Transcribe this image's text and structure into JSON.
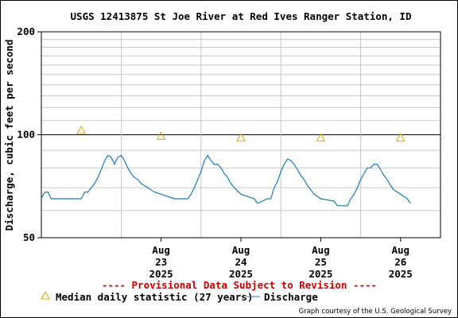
{
  "chart_data": {
    "type": "line",
    "title": "USGS 12413875 St Joe River at Red Ives Ranger Station, ID",
    "ylabel": "Discharge, cubic feet per second",
    "xlabel": "",
    "y_scale": "log",
    "ylim": [
      50,
      200
    ],
    "y_ticks": [
      50,
      100,
      200
    ],
    "y_tick_labels": [
      "50",
      "100",
      "200"
    ],
    "x_start": "2025-08-22",
    "x_end": "2025-08-27",
    "x_ticks": [
      {
        "date": "2025-08-23T00:00",
        "label": [
          "Aug",
          "23",
          "2025"
        ]
      },
      {
        "date": "2025-08-24T00:00",
        "label": [
          "Aug",
          "24",
          "2025"
        ]
      },
      {
        "date": "2025-08-25T00:00",
        "label": [
          "Aug",
          "25",
          "2025"
        ]
      },
      {
        "date": "2025-08-26T00:00",
        "label": [
          "Aug",
          "26",
          "2025"
        ]
      },
      {
        "date": "2025-08-27T00:00",
        "label": [
          "Aug",
          "27",
          "2025"
        ]
      }
    ],
    "grid": true,
    "series": [
      {
        "name": "Discharge",
        "color": "#1a7ab8",
        "x": [
          "2025-08-22T00:00",
          "2025-08-22T01:00",
          "2025-08-22T02:00",
          "2025-08-22T03:00",
          "2025-08-22T06:00",
          "2025-08-22T09:00",
          "2025-08-22T12:00",
          "2025-08-22T13:00",
          "2025-08-22T14:00",
          "2025-08-22T15:00",
          "2025-08-22T16:00",
          "2025-08-22T17:00",
          "2025-08-22T18:00",
          "2025-08-22T19:00",
          "2025-08-22T20:00",
          "2025-08-22T21:00",
          "2025-08-22T22:00",
          "2025-08-22T23:00",
          "2025-08-23T00:00",
          "2025-08-23T01:00",
          "2025-08-23T02:00",
          "2025-08-23T03:00",
          "2025-08-23T04:00",
          "2025-08-23T05:00",
          "2025-08-23T06:00",
          "2025-08-23T08:00",
          "2025-08-23T10:00",
          "2025-08-23T12:00",
          "2025-08-23T16:00",
          "2025-08-23T20:00",
          "2025-08-23T21:00",
          "2025-08-23T22:00",
          "2025-08-23T23:00",
          "2025-08-24T00:00",
          "2025-08-24T01:00",
          "2025-08-24T02:00",
          "2025-08-24T03:00",
          "2025-08-24T04:00",
          "2025-08-24T05:00",
          "2025-08-24T06:00",
          "2025-08-24T07:00",
          "2025-08-24T08:00",
          "2025-08-24T09:00",
          "2025-08-24T10:00",
          "2025-08-24T12:00",
          "2025-08-24T16:00",
          "2025-08-24T17:00",
          "2025-08-24T20:00",
          "2025-08-24T21:00",
          "2025-08-24T22:00",
          "2025-08-24T23:00",
          "2025-08-25T00:00",
          "2025-08-25T01:00",
          "2025-08-25T02:00",
          "2025-08-25T03:00",
          "2025-08-25T04:00",
          "2025-08-25T05:00",
          "2025-08-25T06:00",
          "2025-08-25T07:00",
          "2025-08-25T08:00",
          "2025-08-25T09:00",
          "2025-08-25T10:00",
          "2025-08-25T12:00",
          "2025-08-25T16:00",
          "2025-08-25T17:00",
          "2025-08-25T20:00",
          "2025-08-25T21:00",
          "2025-08-25T22:00",
          "2025-08-25T23:00",
          "2025-08-26T00:00",
          "2025-08-26T01:00",
          "2025-08-26T02:00",
          "2025-08-26T03:00",
          "2025-08-26T04:00",
          "2025-08-26T05:00",
          "2025-08-26T06:00",
          "2025-08-26T07:00",
          "2025-08-26T08:00",
          "2025-08-26T09:00",
          "2025-08-26T10:00",
          "2025-08-26T12:00",
          "2025-08-26T14:00",
          "2025-08-26T15:00"
        ],
        "y": [
          65,
          68,
          68,
          65,
          65,
          65,
          65,
          68,
          68,
          70,
          72,
          75,
          79,
          84,
          87,
          86,
          82,
          86,
          87,
          84,
          80,
          77,
          75,
          74,
          72,
          70,
          68,
          67,
          65,
          65,
          67,
          70,
          74,
          78,
          84,
          87,
          84,
          82,
          82,
          80,
          77,
          75,
          72,
          70,
          67,
          65,
          63,
          65,
          65,
          70,
          73,
          78,
          82,
          85,
          84,
          82,
          79,
          76,
          74,
          71,
          69,
          67,
          65,
          64,
          62,
          62,
          65,
          67,
          70,
          74,
          77,
          80,
          80,
          82,
          82,
          79,
          76,
          74,
          71,
          69,
          67,
          65,
          63
        ]
      },
      {
        "name": "Median daily statistic (27 years)",
        "marker": "triangle",
        "color": "#e8a000",
        "x": [
          "2025-08-22T12:00",
          "2025-08-23T12:00",
          "2025-08-24T12:00",
          "2025-08-25T12:00",
          "2025-08-26T12:00"
        ],
        "y": [
          103,
          99,
          98,
          98,
          98
        ]
      }
    ]
  },
  "banner": "---- Provisional Data Subject to Revision ----",
  "legend": {
    "median_label": "Median daily statistic (27 years)",
    "discharge_label": "Discharge"
  },
  "credit": "Graph courtesy of the U.S. Geological Survey",
  "colors": {
    "banner": "#cc0000",
    "grid": "#c8c8c8",
    "discharge": "#1a7ab8",
    "median": "#e8a000"
  }
}
